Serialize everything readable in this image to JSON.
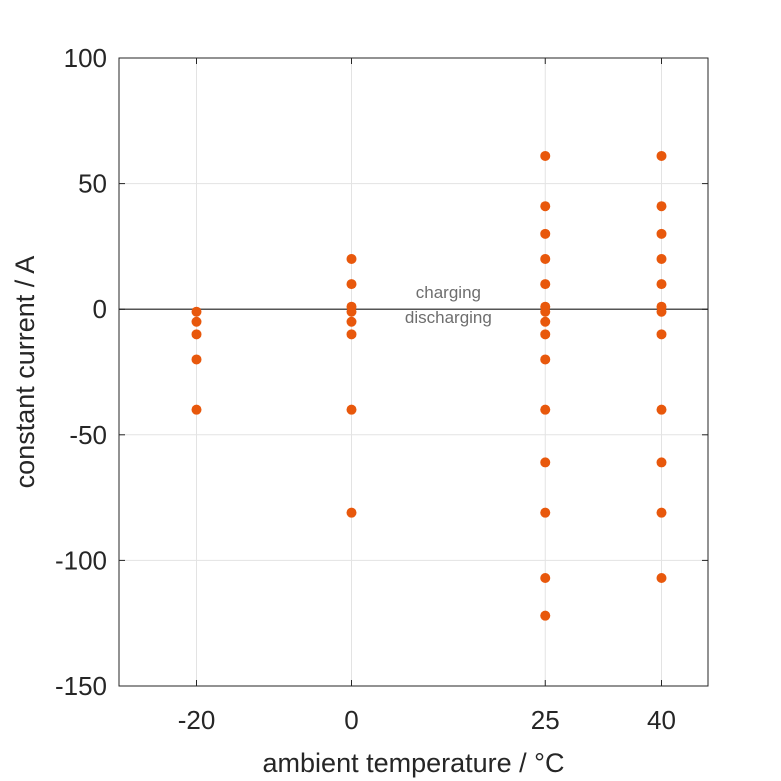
{
  "chart_data": {
    "type": "scatter",
    "title": "",
    "xlabel": "ambient temperature / °C",
    "ylabel": "constant current / A",
    "xlim": [
      -30,
      46
    ],
    "ylim": [
      -150,
      100
    ],
    "xticks": [
      -20,
      0,
      25,
      40
    ],
    "yticks": [
      -150,
      -100,
      -50,
      0,
      50,
      100
    ],
    "xtick_labels": [
      "-20",
      "0",
      "25",
      "40"
    ],
    "ytick_labels": [
      "-150",
      "-100",
      "-50",
      "0",
      "50",
      "100"
    ],
    "grid": true,
    "zero_line": true,
    "annotations": [
      {
        "text": "charging",
        "x": 12.5,
        "y": 4.5
      },
      {
        "text": "discharging",
        "x": 12.5,
        "y": -5.5
      }
    ],
    "series": [
      {
        "color": "#e8580c",
        "points": [
          {
            "x": -20,
            "y": -1
          },
          {
            "x": -20,
            "y": -5
          },
          {
            "x": -20,
            "y": -10
          },
          {
            "x": -20,
            "y": -20
          },
          {
            "x": -20,
            "y": -40
          },
          {
            "x": 0,
            "y": 20
          },
          {
            "x": 0,
            "y": 10
          },
          {
            "x": 0,
            "y": 1
          },
          {
            "x": 0,
            "y": -1
          },
          {
            "x": 0,
            "y": -5
          },
          {
            "x": 0,
            "y": -10
          },
          {
            "x": 0,
            "y": -40
          },
          {
            "x": 0,
            "y": -81
          },
          {
            "x": 25,
            "y": 61
          },
          {
            "x": 25,
            "y": 41
          },
          {
            "x": 25,
            "y": 30
          },
          {
            "x": 25,
            "y": 20
          },
          {
            "x": 25,
            "y": 10
          },
          {
            "x": 25,
            "y": 1
          },
          {
            "x": 25,
            "y": -1
          },
          {
            "x": 25,
            "y": -5
          },
          {
            "x": 25,
            "y": -10
          },
          {
            "x": 25,
            "y": -20
          },
          {
            "x": 25,
            "y": -40
          },
          {
            "x": 25,
            "y": -61
          },
          {
            "x": 25,
            "y": -81
          },
          {
            "x": 25,
            "y": -107
          },
          {
            "x": 25,
            "y": -122
          },
          {
            "x": 40,
            "y": 61
          },
          {
            "x": 40,
            "y": 41
          },
          {
            "x": 40,
            "y": 30
          },
          {
            "x": 40,
            "y": 20
          },
          {
            "x": 40,
            "y": 10
          },
          {
            "x": 40,
            "y": 1
          },
          {
            "x": 40,
            "y": -1
          },
          {
            "x": 40,
            "y": -10
          },
          {
            "x": 40,
            "y": -40
          },
          {
            "x": 40,
            "y": -61
          },
          {
            "x": 40,
            "y": -81
          },
          {
            "x": 40,
            "y": -107
          }
        ]
      }
    ]
  }
}
